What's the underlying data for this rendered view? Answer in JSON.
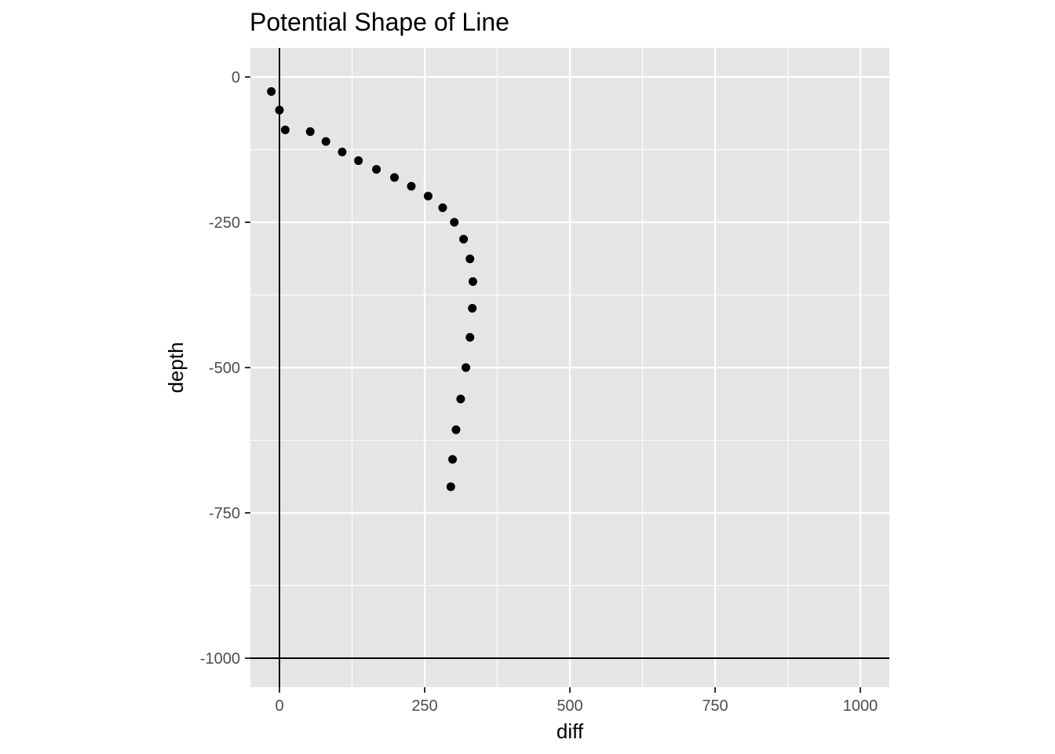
{
  "chart_data": {
    "type": "scatter",
    "title": "Potential Shape of Line",
    "xlabel": "diff",
    "ylabel": "depth",
    "xlim": [
      -50,
      1050
    ],
    "ylim": [
      -1050,
      50
    ],
    "x_ticks": [
      0,
      250,
      500,
      750,
      1000
    ],
    "x_tick_labels": [
      "0",
      "250",
      "500",
      "750",
      "1000"
    ],
    "y_ticks": [
      0,
      -250,
      -500,
      -750,
      -1000
    ],
    "y_tick_labels": [
      "0",
      "-250",
      "-500",
      "-750",
      "-1000"
    ],
    "grid": true,
    "reference_lines": {
      "vertical_x": 0,
      "horizontal_y": -1000
    },
    "colors": {
      "panel": "#e5e5e5",
      "grid": "#ffffff",
      "point": "#000000",
      "reference_line": "#000000"
    },
    "points": [
      {
        "x": -14,
        "y": -25
      },
      {
        "x": 0,
        "y": -57
      },
      {
        "x": 10,
        "y": -91
      },
      {
        "x": 53,
        "y": -94
      },
      {
        "x": 80,
        "y": -111
      },
      {
        "x": 108,
        "y": -129
      },
      {
        "x": 136,
        "y": -144
      },
      {
        "x": 167,
        "y": -159
      },
      {
        "x": 198,
        "y": -173
      },
      {
        "x": 227,
        "y": -188
      },
      {
        "x": 256,
        "y": -205
      },
      {
        "x": 281,
        "y": -225
      },
      {
        "x": 301,
        "y": -250
      },
      {
        "x": 317,
        "y": -279
      },
      {
        "x": 328,
        "y": -313
      },
      {
        "x": 333,
        "y": -352
      },
      {
        "x": 332,
        "y": -398
      },
      {
        "x": 328,
        "y": -448
      },
      {
        "x": 321,
        "y": -500
      },
      {
        "x": 312,
        "y": -554
      },
      {
        "x": 304,
        "y": -607
      },
      {
        "x": 298,
        "y": -658
      },
      {
        "x": 295,
        "y": -705
      }
    ]
  }
}
